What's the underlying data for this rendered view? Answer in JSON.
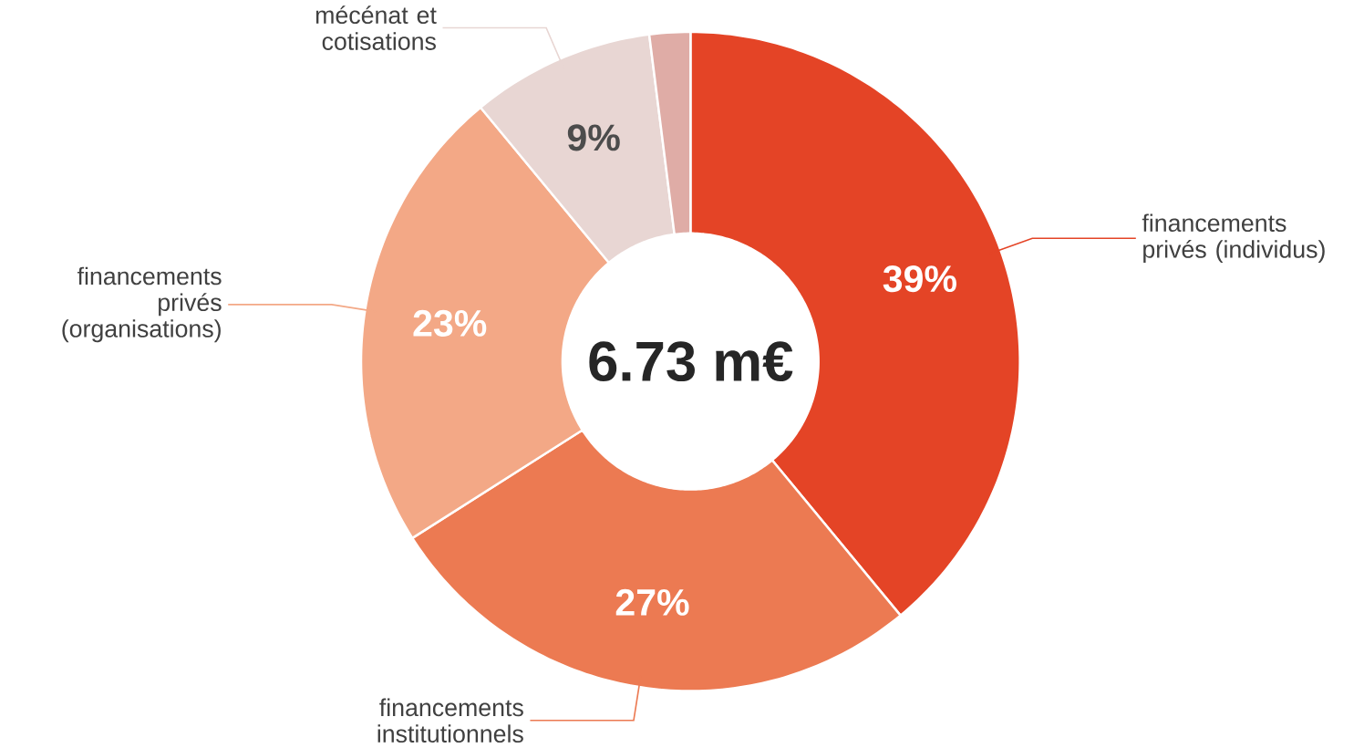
{
  "chart_data": {
    "type": "donut",
    "categories": [
      "financements privés (individus)",
      "financements institutionnels",
      "financements privés (organisations)",
      "mécénat et cotisations",
      null
    ],
    "values": [
      39,
      27,
      23,
      9,
      2
    ],
    "colors": [
      "#e44426",
      "#ec7a52",
      "#f3a886",
      "#e8d6d3",
      "#dfaca6"
    ],
    "value_labels": [
      "39%",
      "27%",
      "23%",
      "9%",
      null
    ],
    "annotations": [
      "6.73 m€"
    ]
  }
}
